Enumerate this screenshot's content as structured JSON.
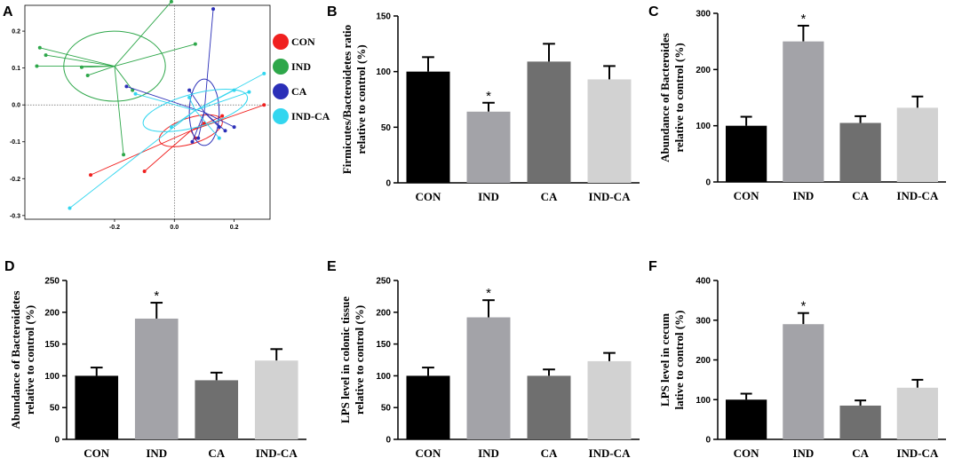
{
  "chart_data": [
    {
      "panel": "A",
      "type": "scatter",
      "title": "",
      "xlim": [
        -0.5,
        0.32
      ],
      "ylim": [
        -0.31,
        0.27
      ],
      "x_ticks": [
        -0.2,
        0.0,
        0.2
      ],
      "x_tick_labels": [
        "-0.2",
        "0.0",
        "0.2"
      ],
      "y_ticks": [
        0.2,
        0.1,
        0.0,
        -0.1,
        -0.2,
        -0.3
      ],
      "y_tick_labels": [
        "0.2",
        "0.1",
        "0.0",
        "-0.1",
        "-0.2",
        "-0.3"
      ],
      "legend": [
        {
          "label": "CON",
          "color": "#f0201f"
        },
        {
          "label": "IND",
          "color": "#2ea74a"
        },
        {
          "label": "CA",
          "color": "#2b2fb8"
        },
        {
          "label": "IND-CA",
          "color": "#33d6ef"
        }
      ],
      "series": [
        {
          "name": "CON",
          "color": "#f0201f",
          "centroid": [
            0.055,
            -0.07
          ],
          "ellipse": {
            "rx": 0.11,
            "ry": 0.035,
            "angle": -18
          },
          "points": [
            [
              -0.28,
              -0.19
            ],
            [
              0.1,
              -0.05
            ],
            [
              0.16,
              -0.03
            ],
            [
              0.3,
              0.0
            ],
            [
              -0.1,
              -0.18
            ],
            [
              0.07,
              -0.09
            ]
          ]
        },
        {
          "name": "IND",
          "color": "#2ea74a",
          "centroid": [
            -0.2,
            0.105
          ],
          "ellipse": {
            "rx": 0.17,
            "ry": 0.095,
            "angle": 0
          },
          "points": [
            [
              -0.01,
              0.28
            ],
            [
              -0.46,
              0.105
            ],
            [
              -0.43,
              0.135
            ],
            [
              -0.45,
              0.155
            ],
            [
              -0.31,
              0.102
            ],
            [
              -0.14,
              0.04
            ],
            [
              -0.29,
              0.08
            ],
            [
              0.07,
              0.165
            ],
            [
              -0.17,
              -0.135
            ]
          ]
        },
        {
          "name": "CA",
          "color": "#2b2fb8",
          "centroid": [
            0.1,
            -0.02
          ],
          "ellipse": {
            "rx": 0.05,
            "ry": 0.09,
            "angle": 0
          },
          "points": [
            [
              0.13,
              0.26
            ],
            [
              0.08,
              -0.09
            ],
            [
              0.15,
              -0.06
            ],
            [
              0.17,
              -0.07
            ],
            [
              -0.16,
              0.05
            ],
            [
              0.06,
              -0.1
            ],
            [
              0.2,
              -0.06
            ],
            [
              0.05,
              0.04
            ]
          ]
        },
        {
          "name": "IND-CA",
          "color": "#33d6ef",
          "centroid": [
            0.07,
            -0.015
          ],
          "ellipse": {
            "rx": 0.18,
            "ry": 0.045,
            "angle": -15
          },
          "points": [
            [
              -0.35,
              -0.28
            ],
            [
              0.3,
              0.085
            ],
            [
              0.25,
              0.035
            ],
            [
              -0.01,
              -0.06
            ],
            [
              0.2,
              0.04
            ],
            [
              -0.13,
              0.03
            ],
            [
              0.05,
              0.02
            ],
            [
              0.15,
              -0.09
            ]
          ]
        }
      ]
    },
    {
      "panel": "B",
      "type": "bar",
      "categories": [
        "CON",
        "IND",
        "CA",
        "IND-CA"
      ],
      "values": [
        100,
        64,
        109,
        93
      ],
      "errors": [
        13,
        8,
        16,
        12
      ],
      "significance": [
        "",
        "*",
        "",
        ""
      ],
      "ylabel": [
        "Firmicutes/Bacteroidetes ratio",
        "relative to control (%)"
      ],
      "ylim": [
        0,
        150
      ],
      "yticks": [
        0,
        50,
        100,
        150
      ]
    },
    {
      "panel": "C",
      "type": "bar",
      "categories": [
        "CON",
        "IND",
        "CA",
        "IND-CA"
      ],
      "values": [
        100,
        250,
        105,
        132
      ],
      "errors": [
        16,
        28,
        12,
        20
      ],
      "significance": [
        "",
        "*",
        "",
        ""
      ],
      "ylabel": [
        "Abundance of Bacteroides",
        "relative to control (%)"
      ],
      "ylim": [
        0,
        300
      ],
      "yticks": [
        0,
        100,
        200,
        300
      ]
    },
    {
      "panel": "D",
      "type": "bar",
      "categories": [
        "CON",
        "IND",
        "CA",
        "IND-CA"
      ],
      "values": [
        100,
        190,
        93,
        124
      ],
      "errors": [
        13,
        25,
        12,
        18
      ],
      "significance": [
        "",
        "*",
        "",
        ""
      ],
      "ylabel": [
        "Abundance of Bacteroidetes",
        "relative to control (%)"
      ],
      "ylim": [
        0,
        250
      ],
      "yticks": [
        0,
        50,
        100,
        150,
        200,
        250
      ]
    },
    {
      "panel": "E",
      "type": "bar",
      "categories": [
        "CON",
        "IND",
        "CA",
        "IND-CA"
      ],
      "values": [
        100,
        192,
        100,
        123
      ],
      "errors": [
        13,
        27,
        10,
        13
      ],
      "significance": [
        "",
        "*",
        "",
        ""
      ],
      "ylabel": [
        "LPS level in colonic tissue",
        "relative to control (%)"
      ],
      "ylim": [
        0,
        250
      ],
      "yticks": [
        0,
        50,
        100,
        150,
        200,
        250
      ]
    },
    {
      "panel": "F",
      "type": "bar",
      "categories": [
        "CON",
        "IND",
        "CA",
        "IND-CA"
      ],
      "values": [
        100,
        290,
        85,
        130
      ],
      "errors": [
        15,
        28,
        13,
        20
      ],
      "significance": [
        "",
        "*",
        "",
        ""
      ],
      "ylabel": [
        "LPS level in cecum",
        "lative to control (%)"
      ],
      "ylim": [
        0,
        400
      ],
      "yticks": [
        0,
        100,
        200,
        300,
        400
      ]
    }
  ],
  "bar_colors": [
    "#000000",
    "#a3a3a8",
    "#6f6f6f",
    "#d2d2d2"
  ]
}
